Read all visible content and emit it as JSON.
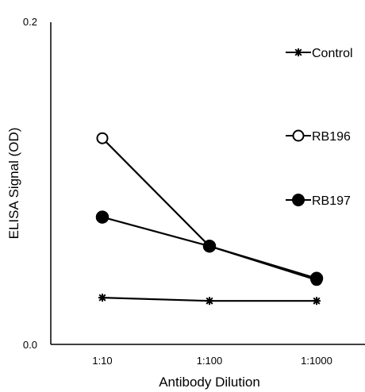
{
  "chart_data": {
    "type": "line",
    "xlabel": "Antibody Dilution",
    "ylabel": "ELISA Signal (OD)",
    "categories": [
      "1:10",
      "1:100",
      "1:1000"
    ],
    "ylim": [
      0.0,
      0.2
    ],
    "yticks": [
      "0.0",
      "0.2"
    ],
    "grid": false,
    "legend_position": "right",
    "series": [
      {
        "name": "Control",
        "marker": "asterisk",
        "color": "#000000",
        "values": [
          0.029,
          0.027,
          0.027
        ]
      },
      {
        "name": "RB196",
        "marker": "open-circle",
        "color": "#000000",
        "values": [
          0.128,
          0.061,
          0.04
        ]
      },
      {
        "name": "RB197",
        "marker": "filled-circle",
        "color": "#000000",
        "values": [
          0.079,
          0.061,
          0.041
        ]
      }
    ]
  }
}
